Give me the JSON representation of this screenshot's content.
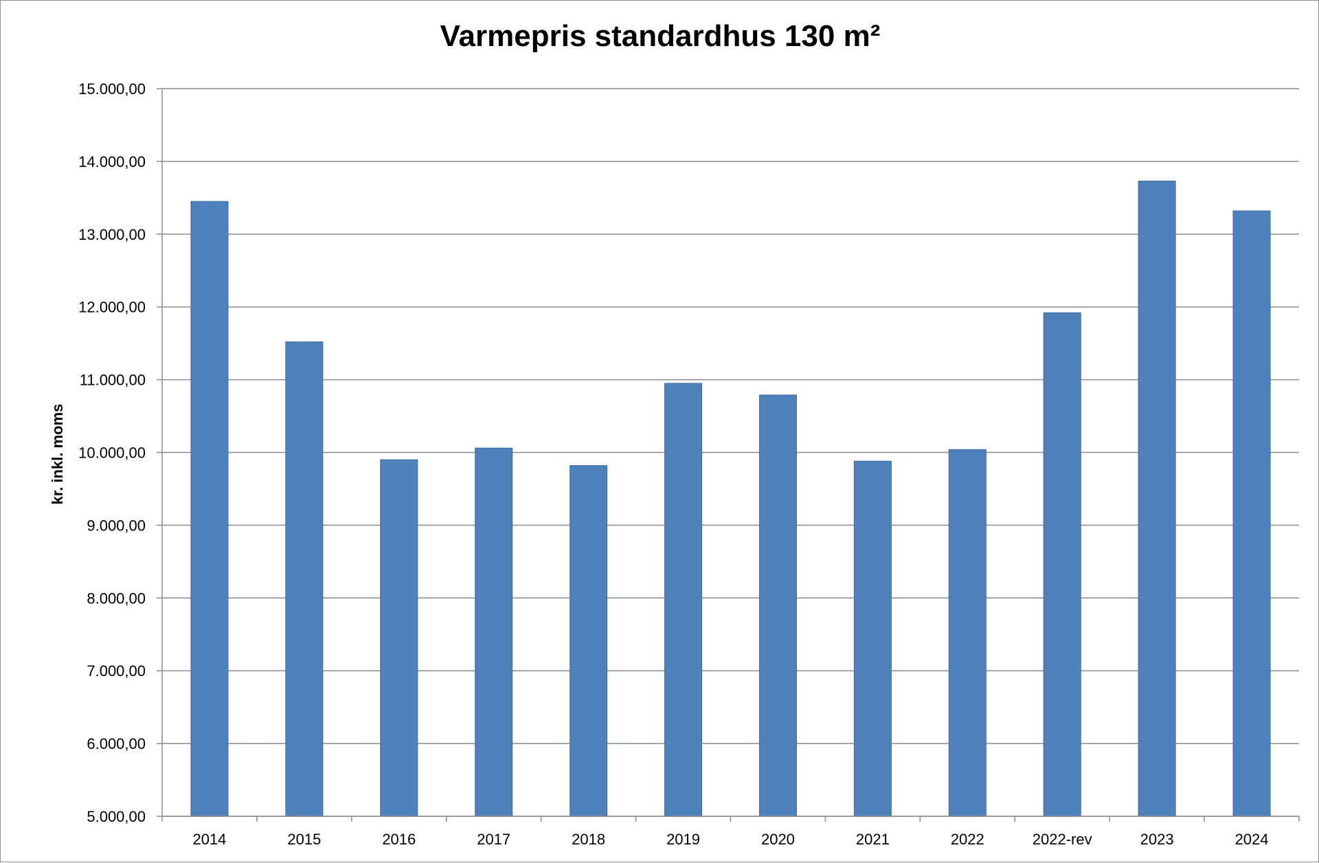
{
  "chart_data": {
    "type": "bar",
    "title": "Varmepris standardhus 130 m²",
    "xlabel": "",
    "ylabel": "kr. inkl. moms",
    "ylim": [
      5000,
      15000
    ],
    "yticks": [
      5000,
      6000,
      7000,
      8000,
      9000,
      10000,
      11000,
      12000,
      13000,
      14000,
      15000
    ],
    "ytick_labels": [
      "5.000,00",
      "6.000,00",
      "7.000,00",
      "8.000,00",
      "9.000,00",
      "10.000,00",
      "11.000,00",
      "12.000,00",
      "13.000,00",
      "14.000,00",
      "15.000,00"
    ],
    "categories": [
      "2014",
      "2015",
      "2016",
      "2017",
      "2018",
      "2019",
      "2020",
      "2021",
      "2022",
      "2022-rev",
      "2023",
      "2024"
    ],
    "values": [
      13450,
      11520,
      9900,
      10060,
      9820,
      10950,
      10790,
      9880,
      10040,
      11920,
      13730,
      13320
    ],
    "grid": true,
    "legend": "none",
    "colors": {
      "bar": "#4f81bd",
      "bar_edge": "#3a6aa0",
      "grid": "#8c8c8c",
      "axis": "#8c8c8c"
    }
  }
}
